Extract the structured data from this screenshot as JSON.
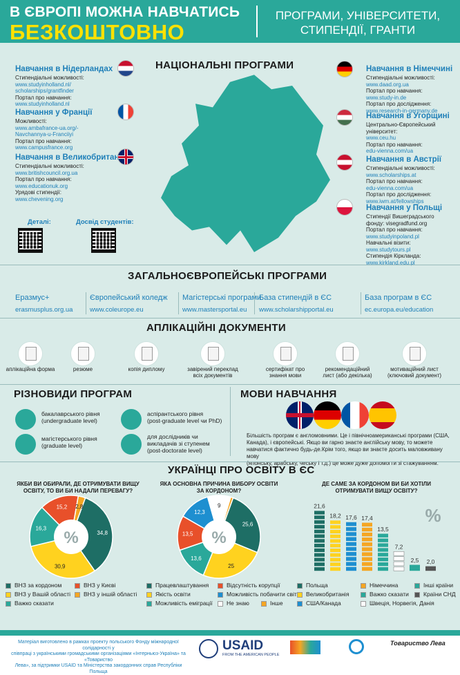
{
  "header": {
    "line1": "В ЄВРОПІ МОЖНА НАВЧАТИСЬ",
    "line2": "БЕЗКОШТОВНО",
    "right_l1": "ПРОГРАМИ, УНІВЕРСИТЕТИ,",
    "right_l2": "СТИПЕНДІЇ, ГРАНТИ"
  },
  "national": {
    "title": "НАЦІОНАЛЬНІ ПРОГРАМИ",
    "nl": {
      "h": "Навчання в Нідерландах",
      "a": "Стипендіальні можливості:",
      "b": "www.studyinholland.nl/",
      "c": "scholarships/grantfinder",
      "d": "Портал про навчання:",
      "e": "www.studyinholland.nl"
    },
    "fr": {
      "h": "Навчання у Франції",
      "a": "Можливості:",
      "b": "www.ambafrance-ua.org/-",
      "c": "Navchannya-u-Franciiyi",
      "d": "Портал про навчання:",
      "e": "www.campusfrance.org"
    },
    "gb": {
      "h": "Навчання в Великобританії",
      "a": "Стипендіальні можливості:",
      "b": "www.britishcouncil.org.ua",
      "c": "Портал про навчання:",
      "d": "www.educationuk.org",
      "e": "Урядові стипендії:",
      "f": "www.chevening.org"
    },
    "de": {
      "h": "Навчання в Німеччині",
      "a": "Стипендіальні можливості:",
      "b": "www.daad.org.ua",
      "c": "Портал про навчання:",
      "d": "www.study-in.de",
      "e": "Портал про дослідження:",
      "f": "www.research-in-germany.de"
    },
    "hu": {
      "h": "Навчання в Угорщині",
      "a": "Центрально-Європейський",
      "b": "університет:",
      "c": "www.ceu.hu",
      "d": "Портал про навчання:",
      "e": "edu-vienna.com/ua"
    },
    "at": {
      "h": "Навчання в Австрії",
      "a": "Стипендіальні можливості:",
      "b": "www.scholarships.at",
      "c": "Портал про навчання:",
      "d": "edu-vienna.com/ua",
      "e": "Портал про дослідження:",
      "f": "www.iwm.at/fellowships"
    },
    "pl": {
      "h": "Навчання у Польщі",
      "a": "Стипендії Вишеградського",
      "b": "фонду: visegradfund.org",
      "c": "Портал про навчання:",
      "d": "www.studyinpoland.pl",
      "e": "Навчальні візити:",
      "f": "www.studytours.pl",
      "g": "Стипендія Кірклaнда:",
      "h2": "www.kirkland.edu.pl"
    },
    "qr1": "Деталі:",
    "qr2": "Досвід студентів:"
  },
  "general": {
    "title": "ЗАГАЛЬНОЄВРОПЕЙСЬКІ ПРОГРАМИ",
    "items": [
      {
        "name": "Еразмус+",
        "url": "erasmusplus.org.ua"
      },
      {
        "name": "Європейський коледж",
        "url": "www.coleurope.eu"
      },
      {
        "name": "Магістерські програми",
        "url": "www.mastersportal.eu"
      },
      {
        "name": "База стипендій в ЄС",
        "url": "www.scholarshipportal.eu"
      },
      {
        "name": "База програм в ЄС",
        "url": "ec.europa.eu/education"
      }
    ]
  },
  "docs": {
    "title": "АПЛІКАЦІЙНІ ДОКУМЕНТИ",
    "items": [
      "аплікаційна форма",
      "резюме",
      "копія диплому",
      "завірений переклад|всіх документів",
      "сертифікат про|знання мови",
      "рекомендаційний|лист (або декілька)",
      "мотиваційний лист|(ключовий документ)"
    ]
  },
  "kinds": {
    "title": "РІЗНОВИДИ ПРОГРАМ",
    "b1": "бакалаврського рівня",
    "b2": "(undergraduate level)",
    "m1": "магістерського рівня",
    "m2": "(graduate level)",
    "a1": "аспірантського рівня",
    "a2": "(post-graduate level чи PhD)",
    "d1": "для дослідників чи",
    "d2": "викладачів зі ступенем",
    "d3": "(post-doctorate level)"
  },
  "langs": {
    "title": "МОВИ НАВЧАННЯ",
    "text1": "Більшість програм є англомовними. Це і північноамериканські програми (США,",
    "text2": "Канада), і європейські. Якщо ви гарно знаєте англійську мову, то можете",
    "text3": "навчатися фактично будь-де.Крім того, якщо ви знаєте досить маловживану мову",
    "text4": "(японську, арабську, чеську і т.д.) це може дуже допомогти зі стажуванням."
  },
  "survey": {
    "title": "УКРАЇНЦІ ПРО ОСВІТУ В ЄС",
    "q1": "ЯКБИ  ВИ ОБИРАЛИ, ДЕ ОТРИМУВАТИ ВИЩУ",
    "q1b": "ОСВІТУ, ТО ВИ БИ НАДАЛИ ПЕРЕВАГУ?",
    "q2": "ЯКА ОСНОВНА ПРИЧИНА ВИБОРУ ОСВІТИ",
    "q2b": "ЗА КОРДОНОМ?",
    "q3": "ДЕ САМЕ ЗА КОРДОНОМ ВИ БИ ХОТІЛИ",
    "q3b": "ОТРИМУВАТИ ВИЩУ ОСВІТУ?",
    "leg1": [
      "ВНЗ за кордоном",
      "ВНЗ у Києві",
      "ВНЗ у Вашій області",
      "ВНЗ у іншій області",
      "Важко сказати"
    ],
    "leg2": [
      "Працевлаштування",
      "Відсутність корупції",
      "Якість освіти",
      "Можливість побачити світ",
      "Можливість еміграції",
      "Не знаю",
      "Інше"
    ],
    "leg3": [
      "Польща",
      "Німеччина",
      "Інші країни",
      "Великобританія",
      "Важко сказати",
      "Країни СНД",
      "США/Канада",
      "Швеція, Норвегія, Данія"
    ]
  },
  "chart_data": [
    {
      "type": "pie",
      "title": "ЯКБИ  ВИ ОБИРАЛИ, ДЕ ОТРИМУВАТИ ВИЩУ ОСВІТУ, ТО ВИ БИ НАДАЛИ ПЕРЕВАГУ?",
      "categories": [
        "ВНЗ за кордоном",
        "ВНЗ у Вашій області",
        "Важко сказати",
        "ВНЗ у Києві",
        "ВНЗ у іншій області"
      ],
      "values": [
        34.8,
        30.9,
        16.3,
        15.2,
        2.8
      ],
      "colors": [
        "#1e6e65",
        "#ffd21f",
        "#2aa89a",
        "#e8502a",
        "#f5a623"
      ]
    },
    {
      "type": "pie",
      "title": "ЯКА ОСНОВНА ПРИЧИНА ВИБОРУ ОСВІТИ ЗА КОРДОНОМ?",
      "categories": [
        "Працевлаштування",
        "Якість освіти",
        "Можливість еміграції",
        "Відсутність корупції",
        "Можливість побачити світ",
        "Не знаю",
        "Інше"
      ],
      "values": [
        25.6,
        25,
        13.6,
        13.5,
        12.3,
        9,
        1
      ],
      "colors": [
        "#1e6e65",
        "#ffd21f",
        "#2aa89a",
        "#e8502a",
        "#1e8fd0",
        "#ffffff",
        "#f5a623"
      ]
    },
    {
      "type": "bar",
      "title": "ДЕ САМЕ ЗА КОРДОНОМ ВИ БИ ХОТІЛИ ОТРИМУВАТИ ВИЩУ ОСВІТУ?",
      "categories": [
        "Польща",
        "Великобританія",
        "США/Канада",
        "Німеччина",
        "Важко сказати",
        "Швеція, Норвегія, Данія",
        "Інші країни",
        "Країни СНД"
      ],
      "values": [
        21.6,
        18.2,
        17.6,
        17.4,
        13.5,
        7.2,
        2.5,
        2.0
      ],
      "colors": [
        "#1e6e65",
        "#ffd21f",
        "#1e8fd0",
        "#f5a623",
        "#2aa89a",
        "#ffffff",
        "#2aa89a",
        "#555555"
      ]
    }
  ],
  "footer": {
    "l1": "Матеріал виготовлено в рамках проекту польського Фонду міжнародної солідарності у",
    "l2": "співпраці з українськими громадськими організаціями «Інтерньюз-Україна» та «Товариство",
    "l3": "Лева», за підтримки USAID та Міністерства закордонних справ Республіки Польща",
    "usaid": "USAID",
    "usaid_sub": "FROM THE AMERICAN PEOPLE",
    "lev": "Товариство Лева"
  }
}
